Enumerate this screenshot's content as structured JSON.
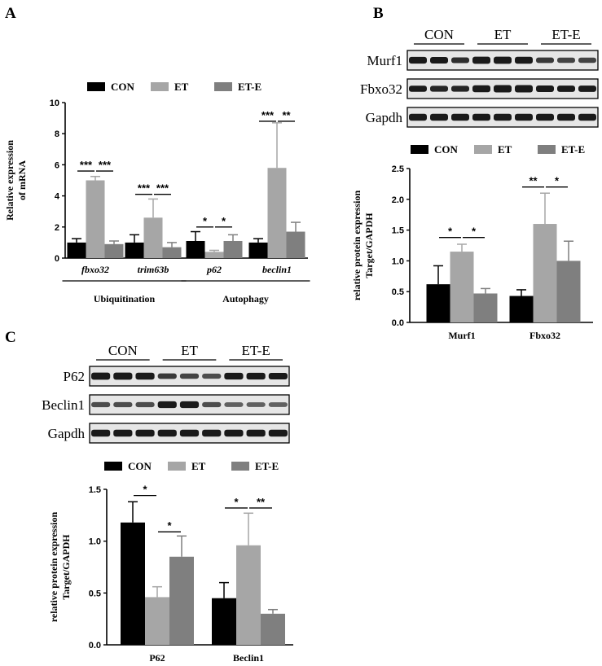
{
  "panels": {
    "A": "A",
    "B": "B",
    "C": "C"
  },
  "colors": {
    "CON": "#000000",
    "ET": "#a6a6a6",
    "ET-E": "#7f7f7f",
    "blot_band": "#1a1a1a",
    "blot_bg": "#e6e6e6"
  },
  "legend": [
    "CON",
    "ET",
    "ET-E"
  ],
  "blots": {
    "B": {
      "groups": [
        "CON",
        "ET",
        "ET-E"
      ],
      "rows": [
        {
          "label": "Murf1",
          "intensity": [
            0.85,
            0.8,
            0.6,
            0.95,
            0.95,
            0.9,
            0.55,
            0.5,
            0.5
          ]
        },
        {
          "label": "Fbxo32",
          "intensity": [
            0.7,
            0.65,
            0.65,
            0.9,
            1.0,
            1.0,
            0.8,
            0.75,
            0.75
          ]
        },
        {
          "label": "Gapdh",
          "intensity": [
            0.9,
            0.9,
            0.9,
            0.9,
            0.9,
            0.9,
            0.9,
            0.9,
            0.9
          ]
        }
      ]
    },
    "C": {
      "groups": [
        "CON",
        "ET",
        "ET-E"
      ],
      "rows": [
        {
          "label": "P62",
          "intensity": [
            0.95,
            0.95,
            0.9,
            0.55,
            0.5,
            0.45,
            0.85,
            0.85,
            0.8
          ]
        },
        {
          "label": "Beclin1",
          "intensity": [
            0.45,
            0.45,
            0.45,
            0.85,
            0.85,
            0.45,
            0.35,
            0.35,
            0.35
          ]
        },
        {
          "label": "Gapdh",
          "intensity": [
            0.9,
            0.9,
            0.9,
            0.9,
            0.9,
            0.9,
            0.9,
            0.9,
            0.9
          ]
        }
      ]
    }
  },
  "chart_data": [
    {
      "id": "A",
      "type": "bar",
      "title": "",
      "ylabel": [
        "Relative  expression",
        "of mRNA"
      ],
      "xlabel": "",
      "ylim": [
        0,
        10
      ],
      "yticks": [
        0,
        2,
        4,
        6,
        8,
        10
      ],
      "categories": [
        "fbxo32",
        "trim63b",
        "p62",
        "beclin1"
      ],
      "groups": [
        {
          "label": "Ubiquitination",
          "categories": [
            "fbxo32",
            "trim63b"
          ]
        },
        {
          "label": "Autophagy",
          "categories": [
            "p62",
            "beclin1"
          ]
        }
      ],
      "series": [
        {
          "name": "CON",
          "values": [
            1.0,
            1.0,
            1.1,
            1.0
          ],
          "errors": [
            0.25,
            0.5,
            0.6,
            0.25
          ]
        },
        {
          "name": "ET",
          "values": [
            5.0,
            2.6,
            0.4,
            5.8
          ],
          "errors": [
            0.25,
            1.2,
            0.1,
            2.9
          ]
        },
        {
          "name": "ET-E",
          "values": [
            0.9,
            0.7,
            1.1,
            1.7
          ],
          "errors": [
            0.2,
            0.3,
            0.4,
            0.6
          ]
        }
      ],
      "significance": [
        {
          "cat": 0,
          "from": 0,
          "to": 1,
          "y": 5.6,
          "label": "***"
        },
        {
          "cat": 0,
          "from": 1,
          "to": 2,
          "y": 5.6,
          "label": "***"
        },
        {
          "cat": 1,
          "from": 0,
          "to": 1,
          "y": 4.1,
          "label": "***"
        },
        {
          "cat": 1,
          "from": 1,
          "to": 2,
          "y": 4.1,
          "label": "***"
        },
        {
          "cat": 2,
          "from": 0,
          "to": 1,
          "y": 2.0,
          "label": "*"
        },
        {
          "cat": 2,
          "from": 1,
          "to": 2,
          "y": 2.0,
          "label": "*"
        },
        {
          "cat": 3,
          "from": 0,
          "to": 1,
          "y": 8.8,
          "label": "***"
        },
        {
          "cat": 3,
          "from": 1,
          "to": 2,
          "y": 8.8,
          "label": "**"
        }
      ]
    },
    {
      "id": "B",
      "type": "bar",
      "title": "",
      "ylabel": [
        "relative  protein expression",
        "Target/GAPDH"
      ],
      "xlabel": "",
      "ylim": [
        0,
        2.5
      ],
      "yticks": [
        "0.0",
        "0.5",
        "1.0",
        "1.5",
        "2.0",
        "2.5"
      ],
      "categories": [
        "Murf1",
        "Fbxo32"
      ],
      "series": [
        {
          "name": "CON",
          "values": [
            0.62,
            0.43
          ],
          "errors": [
            0.3,
            0.1
          ]
        },
        {
          "name": "ET",
          "values": [
            1.15,
            1.6
          ],
          "errors": [
            0.12,
            0.5
          ]
        },
        {
          "name": "ET-E",
          "values": [
            0.47,
            1.0
          ],
          "errors": [
            0.08,
            0.32
          ]
        }
      ],
      "significance": [
        {
          "cat": 0,
          "from": 0,
          "to": 1,
          "y": 1.38,
          "label": "*"
        },
        {
          "cat": 0,
          "from": 1,
          "to": 2,
          "y": 1.38,
          "label": "*"
        },
        {
          "cat": 1,
          "from": 0,
          "to": 1,
          "y": 2.2,
          "label": "**"
        },
        {
          "cat": 1,
          "from": 1,
          "to": 2,
          "y": 2.2,
          "label": "*"
        }
      ]
    },
    {
      "id": "C",
      "type": "bar",
      "title": "",
      "ylabel": [
        "relative  protein expression",
        "Target/GAPDH"
      ],
      "xlabel": "",
      "ylim": [
        0,
        1.5
      ],
      "yticks": [
        "0.0",
        "0.5",
        "1.0",
        "1.5"
      ],
      "categories": [
        "P62",
        "Beclin1"
      ],
      "series": [
        {
          "name": "CON",
          "values": [
            1.18,
            0.45
          ],
          "errors": [
            0.2,
            0.15
          ]
        },
        {
          "name": "ET",
          "values": [
            0.46,
            0.96
          ],
          "errors": [
            0.1,
            0.31
          ]
        },
        {
          "name": "ET-E",
          "values": [
            0.85,
            0.3
          ],
          "errors": [
            0.2,
            0.04
          ]
        }
      ],
      "significance": [
        {
          "cat": 0,
          "from": 0,
          "to": 1,
          "y": 1.44,
          "label": "*"
        },
        {
          "cat": 0,
          "from": 1,
          "to": 2,
          "y": 1.09,
          "label": "*"
        },
        {
          "cat": 1,
          "from": 0,
          "to": 1,
          "y": 1.32,
          "label": "*"
        },
        {
          "cat": 1,
          "from": 1,
          "to": 2,
          "y": 1.32,
          "label": "**"
        }
      ]
    }
  ]
}
